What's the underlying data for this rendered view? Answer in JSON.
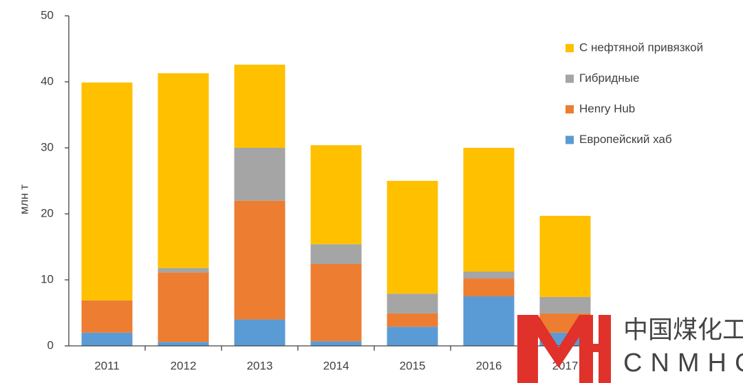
{
  "chart_data": {
    "type": "stacked-bar",
    "y_label": "млн т",
    "categories": [
      "2011",
      "2012",
      "2013",
      "2014",
      "2015",
      "2016",
      "2017"
    ],
    "series": [
      {
        "name": "Европейский хаб",
        "color": "#5b9bd5",
        "values": [
          2,
          0.6,
          4,
          0.7,
          2.9,
          7.5,
          2
        ]
      },
      {
        "name": "Henry Hub",
        "color": "#ed7d31",
        "values": [
          4.9,
          10.5,
          18,
          11.7,
          2,
          2.7,
          2.9
        ]
      },
      {
        "name": "Гибридные",
        "color": "#a5a5a5",
        "values": [
          0,
          0.7,
          8,
          3,
          3,
          1.05,
          2.5
        ]
      },
      {
        "name": "С нефтяной привязкой",
        "color": "#ffc000",
        "values": [
          33,
          29.5,
          12.6,
          15,
          17.1,
          18.75,
          12.3
        ]
      }
    ],
    "ylim": [
      0,
      50
    ],
    "yticks": [
      0,
      10,
      20,
      30,
      40,
      50
    ],
    "grid": false,
    "legend": "right",
    "watermark": {
      "title": "中国煤化工",
      "subtitle": "CNMHG"
    }
  }
}
